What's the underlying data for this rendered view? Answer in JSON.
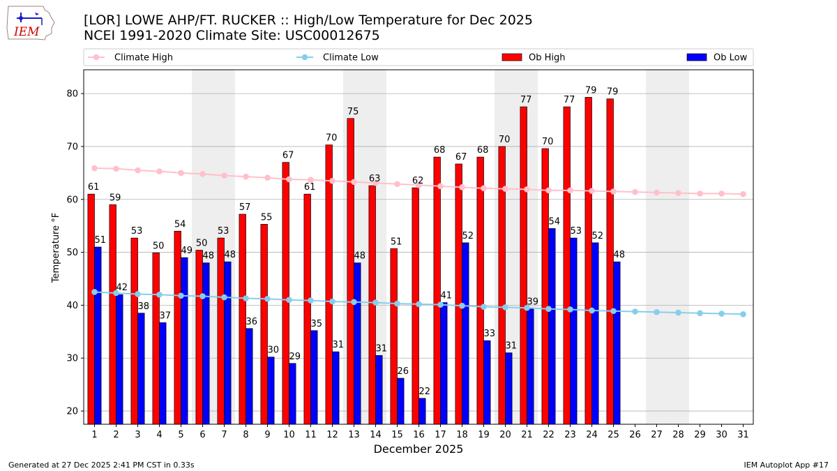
{
  "logo": {
    "text": "IEM"
  },
  "header": {
    "title_line1": "[LOR] LOWE AHP/FT. RUCKER :: High/Low Temperature for Dec 2025",
    "title_line2": "NCEI 1991-2020 Climate Site: USC00012675"
  },
  "footer": {
    "left": "Generated at 27 Dec 2025 2:41 PM CST in 0.33s",
    "right": "IEM Autoplot App #17"
  },
  "chart_data": {
    "type": "bar",
    "xlabel": "December 2025",
    "ylabel": "Temperature °F",
    "ylim": [
      17.5,
      84.5
    ],
    "yticks": [
      20,
      30,
      40,
      50,
      60,
      70,
      80
    ],
    "days": [
      1,
      2,
      3,
      4,
      5,
      6,
      7,
      8,
      9,
      10,
      11,
      12,
      13,
      14,
      15,
      16,
      17,
      18,
      19,
      20,
      21,
      22,
      23,
      24,
      25,
      26,
      27,
      28,
      29,
      30,
      31
    ],
    "weekend_shading": [
      [
        6,
        7
      ],
      [
        13,
        14
      ],
      [
        20,
        21
      ],
      [
        27,
        28
      ]
    ],
    "grid": "horizontal",
    "legend": [
      {
        "label": "Climate High",
        "kind": "line",
        "color": "#ffc0cb"
      },
      {
        "label": "Climate Low",
        "kind": "line",
        "color": "#87ceeb"
      },
      {
        "label": "Ob High",
        "kind": "bar",
        "color": "#ff0000"
      },
      {
        "label": "Ob Low",
        "kind": "bar",
        "color": "#0000ff"
      }
    ],
    "series": [
      {
        "name": "Ob High",
        "type": "bar",
        "color": "#ff0000",
        "values": [
          61,
          59,
          53,
          50,
          54,
          50,
          53,
          57,
          55,
          67,
          61,
          70,
          75,
          63,
          51,
          62,
          68,
          67,
          68,
          70,
          77,
          70,
          77,
          79,
          79
        ],
        "raw": [
          61,
          59,
          52.7,
          49.9,
          54,
          50.4,
          52.7,
          57.2,
          55.3,
          67,
          61,
          70.3,
          75.3,
          62.6,
          50.7,
          62.2,
          68,
          66.7,
          68,
          70,
          77.5,
          69.6,
          77.5,
          79.3,
          79
        ],
        "labels": [
          "61",
          "59",
          "53",
          "50",
          "54",
          "50",
          "53",
          "57",
          "55",
          "67",
          "61",
          "70",
          "75",
          "63",
          "51",
          "62",
          "68",
          "67",
          "68",
          "70",
          "77",
          "70",
          "77",
          "79",
          "79"
        ]
      },
      {
        "name": "Ob Low",
        "type": "bar",
        "color": "#0000ff",
        "values": [
          51,
          42,
          38,
          37,
          49,
          48,
          48,
          36,
          30,
          29,
          35,
          31,
          48,
          31,
          26,
          22,
          41,
          52,
          33,
          31,
          39,
          54,
          53,
          52,
          48
        ],
        "raw": [
          51,
          42,
          38.5,
          36.7,
          49,
          48,
          48.2,
          35.6,
          30.2,
          29,
          35.2,
          31.2,
          48,
          30.5,
          26.2,
          22.4,
          40.5,
          51.8,
          33.3,
          31,
          39.3,
          54.5,
          52.7,
          51.8,
          48.2
        ],
        "labels": [
          "51",
          "42",
          "38",
          "37",
          "49",
          "48",
          "48",
          "36",
          "30",
          "29",
          "35",
          "31",
          "48",
          "31",
          "26",
          "22",
          "41",
          "52",
          "33",
          "31",
          "39",
          "54",
          "53",
          "52",
          "48"
        ]
      },
      {
        "name": "Climate High",
        "type": "line",
        "color": "#ffc0cb",
        "values": [
          65.9,
          65.8,
          65.5,
          65.3,
          65.0,
          64.8,
          64.5,
          64.3,
          64.1,
          63.8,
          63.7,
          63.5,
          63.3,
          63.1,
          62.9,
          62.7,
          62.5,
          62.3,
          62.1,
          62.0,
          61.9,
          61.7,
          61.7,
          61.6,
          61.5,
          61.4,
          61.3,
          61.2,
          61.1,
          61.1,
          61.0
        ]
      },
      {
        "name": "Climate Low",
        "type": "line",
        "color": "#87ceeb",
        "values": [
          42.5,
          42.3,
          42.1,
          42.0,
          41.8,
          41.7,
          41.5,
          41.3,
          41.2,
          41.0,
          40.9,
          40.7,
          40.6,
          40.5,
          40.3,
          40.2,
          40.1,
          39.9,
          39.7,
          39.6,
          39.5,
          39.3,
          39.2,
          39.0,
          38.9,
          38.8,
          38.7,
          38.6,
          38.5,
          38.4,
          38.3
        ]
      }
    ]
  }
}
